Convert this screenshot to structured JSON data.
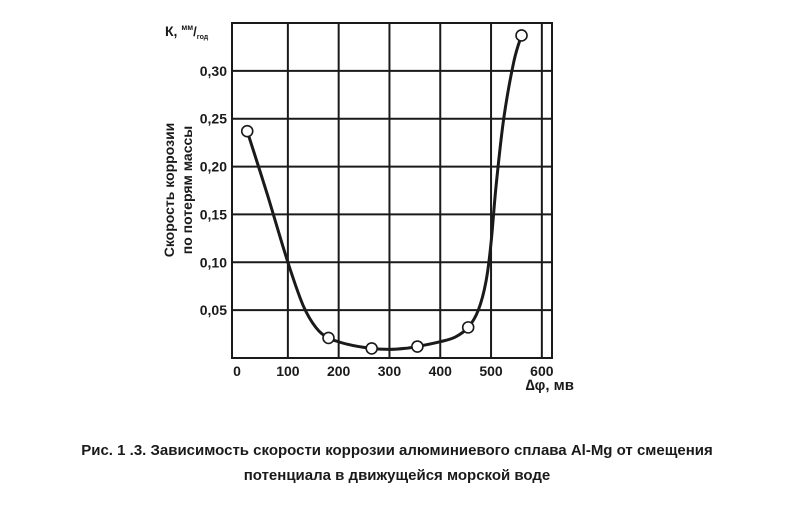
{
  "chart_data": {
    "type": "line",
    "ylabel_unit": {
      "prefix": "К, ",
      "num": "мм",
      "den": "год"
    },
    "ylabel_line1": "Скорость коррозии",
    "ylabel_line2": "по потерям массы",
    "xlabel": "∆φ, мв",
    "xlim": [
      -10,
      620
    ],
    "ylim": [
      0,
      0.35
    ],
    "x_ticks": [
      0,
      100,
      200,
      300,
      400,
      500,
      600
    ],
    "x_tick_labels": [
      "0",
      "100",
      "200",
      "300",
      "400",
      "500",
      "600"
    ],
    "y_ticks": [
      0.05,
      0.1,
      0.15,
      0.2,
      0.25,
      0.3
    ],
    "y_tick_labels": [
      "0,05",
      "0,10",
      "0,15",
      "0,20",
      "0,25",
      "0,30"
    ],
    "grid": true,
    "points": {
      "x": [
        20,
        180,
        265,
        355,
        455,
        560
      ],
      "y": [
        0.237,
        0.021,
        0.01,
        0.012,
        0.032,
        0.337
      ]
    },
    "curve": {
      "x": [
        20,
        60,
        100,
        130,
        155,
        180,
        220,
        265,
        300,
        330,
        355,
        400,
        430,
        455,
        475,
        490,
        500,
        510,
        525,
        545,
        560
      ],
      "y": [
        0.237,
        0.17,
        0.1,
        0.055,
        0.032,
        0.021,
        0.014,
        0.01,
        0.009,
        0.01,
        0.012,
        0.017,
        0.022,
        0.032,
        0.05,
        0.08,
        0.12,
        0.18,
        0.25,
        0.31,
        0.337
      ]
    }
  },
  "caption": {
    "line1": "Рис. 1 .3. Зависимость скорости коррозии алюминиевого сплава Al-Mg от смещения",
    "line2": "потенциала в движущейся морской воде"
  }
}
